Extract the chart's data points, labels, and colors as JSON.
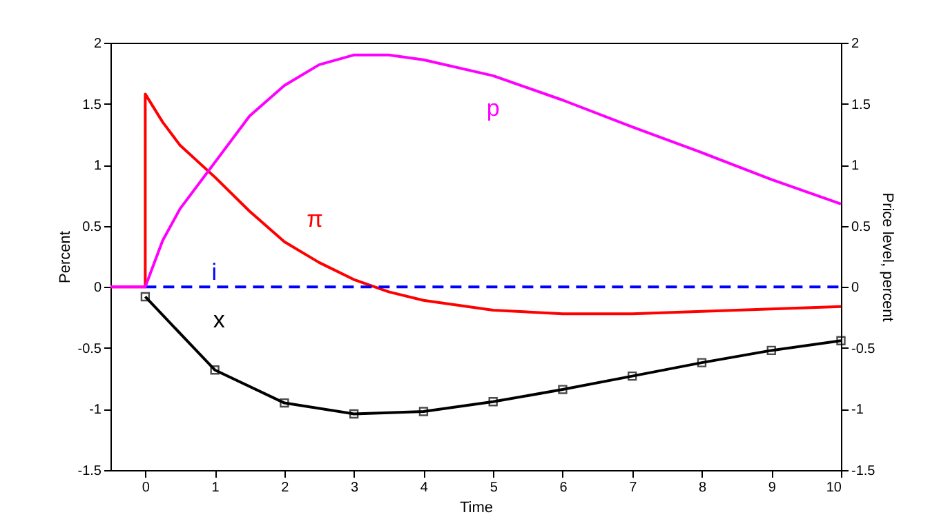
{
  "chart_data": {
    "type": "line",
    "xlabel": "Time",
    "ylabel": "Percent",
    "y2label": "Price level, percent",
    "xlim": [
      -0.5,
      10
    ],
    "xticks": [
      0,
      1,
      2,
      3,
      4,
      5,
      6,
      7,
      8,
      9,
      10
    ],
    "ylim": [
      -1.5,
      2
    ],
    "yticks": [
      -1.5,
      -1,
      -0.5,
      0,
      0.5,
      1,
      1.5,
      2
    ],
    "y2lim": [
      -1.5,
      2
    ],
    "y2ticks": [
      -1.5,
      -1,
      -0.5,
      0,
      0.5,
      1,
      1.5,
      2
    ],
    "grid": false,
    "series": [
      {
        "name": "p",
        "color": "#ff00ff",
        "axis": "y2",
        "x": [
          -0.5,
          0,
          0.25,
          0.5,
          1,
          1.5,
          2,
          2.5,
          3,
          3.5,
          4,
          5,
          6,
          7,
          8,
          9,
          10
        ],
        "values": [
          0,
          0,
          0.38,
          0.64,
          1.02,
          1.4,
          1.65,
          1.82,
          1.9,
          1.9,
          1.86,
          1.73,
          1.53,
          1.31,
          1.1,
          0.88,
          0.68
        ]
      },
      {
        "name": "π",
        "color": "#ff0000",
        "x": [
          -0.5,
          0,
          0,
          0.25,
          0.5,
          1,
          1.5,
          2,
          2.5,
          3,
          3.5,
          4,
          5,
          6,
          7,
          8,
          9,
          10
        ],
        "values": [
          0,
          0,
          1.58,
          1.35,
          1.16,
          0.9,
          0.62,
          0.37,
          0.2,
          0.06,
          -0.04,
          -0.11,
          -0.19,
          -0.22,
          -0.22,
          -0.2,
          -0.18,
          -0.16
        ]
      },
      {
        "name": "i",
        "color": "#0000ff",
        "line_style": "dashed",
        "x": [
          0,
          10
        ],
        "values": [
          0,
          0
        ]
      },
      {
        "name": "x",
        "color": "#000000",
        "marker": "square",
        "x": [
          0,
          1,
          2,
          3,
          4,
          5,
          6,
          7,
          8,
          9,
          10
        ],
        "values": [
          -0.08,
          -0.68,
          -0.95,
          -1.04,
          -1.02,
          -0.94,
          -0.84,
          -0.73,
          -0.62,
          -0.52,
          -0.44
        ]
      }
    ]
  }
}
